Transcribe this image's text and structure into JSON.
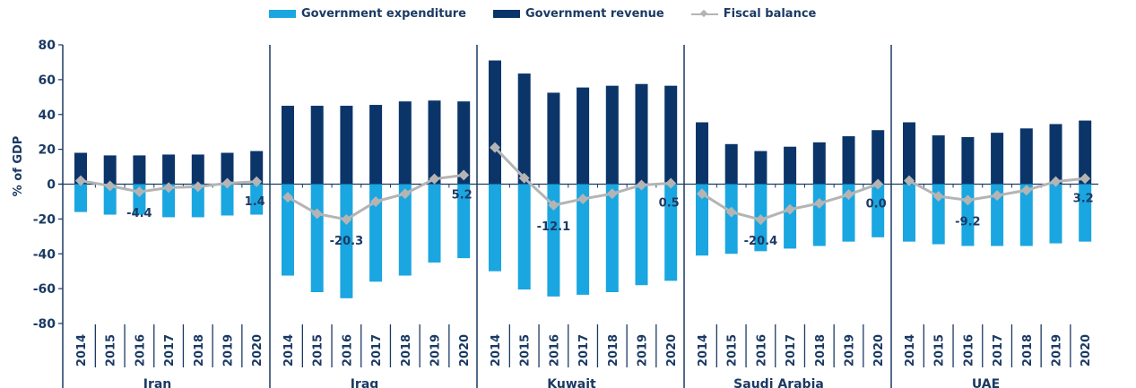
{
  "chart_data": {
    "type": "bar",
    "title": "",
    "ylabel": "% of GDP",
    "xlabel": "",
    "ylim": [
      -80,
      80
    ],
    "yticks": [
      80,
      60,
      40,
      20,
      0,
      -20,
      -40,
      -60,
      -80
    ],
    "grid": false,
    "legend_position": "top",
    "legend": [
      {
        "name": "Government expenditure",
        "kind": "bar",
        "color": "#1aa6e0"
      },
      {
        "name": "Government revenue",
        "kind": "bar",
        "color": "#0b3569"
      },
      {
        "name": "Fiscal balance",
        "kind": "line",
        "color": "#b4b4b4"
      }
    ],
    "years": [
      "2014",
      "2015",
      "2016",
      "2017",
      "2018",
      "2019",
      "2020"
    ],
    "groups": [
      {
        "country": "Iran",
        "revenue": [
          18,
          16.5,
          16.5,
          17,
          17,
          18,
          19
        ],
        "expenditure": [
          -16,
          -17.5,
          -17.5,
          -19,
          -19,
          -18,
          -17.5
        ],
        "fiscal_balance": [
          2,
          -1,
          -4.4,
          -2,
          -1.5,
          0.5,
          1.4
        ],
        "labels": [
          {
            "year_index": 2,
            "text": "-4.4"
          },
          {
            "year_index": 6,
            "text": "1.4"
          }
        ]
      },
      {
        "country": "Iraq",
        "revenue": [
          45,
          45,
          45,
          45.5,
          47.5,
          48,
          47.5
        ],
        "expenditure": [
          -52.5,
          -62,
          -65.5,
          -56,
          -52.5,
          -45,
          -42.5
        ],
        "fiscal_balance": [
          -7.5,
          -17,
          -20.3,
          -10,
          -5.5,
          3,
          5.2
        ],
        "labels": [
          {
            "year_index": 2,
            "text": "-20.3"
          },
          {
            "year_index": 6,
            "text": "5.2"
          }
        ]
      },
      {
        "country": "Kuwait",
        "revenue": [
          71,
          63.5,
          52.5,
          55.5,
          56.5,
          57.5,
          56.5
        ],
        "expenditure": [
          -50,
          -60.5,
          -64.5,
          -63.5,
          -62,
          -58,
          -55.5
        ],
        "fiscal_balance": [
          21,
          3.5,
          -12.1,
          -8.5,
          -5.5,
          -0.5,
          0.5
        ],
        "labels": [
          {
            "year_index": 2,
            "text": "-12.1"
          },
          {
            "year_index": 6,
            "text": "0.5"
          }
        ]
      },
      {
        "country": "Saudi Arabia",
        "revenue": [
          35.5,
          23,
          19,
          21.5,
          24,
          27.5,
          31
        ],
        "expenditure": [
          -41,
          -40,
          -38.5,
          -37,
          -35.5,
          -33,
          -30.5
        ],
        "fiscal_balance": [
          -5.5,
          -16,
          -20.4,
          -14.5,
          -11,
          -6,
          0.0
        ],
        "labels": [
          {
            "year_index": 2,
            "text": "-20.4"
          },
          {
            "year_index": 6,
            "text": "0.0"
          }
        ]
      },
      {
        "country": "UAE",
        "revenue": [
          35.5,
          28,
          27,
          29.5,
          32,
          34.5,
          36.5
        ],
        "expenditure": [
          -33,
          -34.5,
          -35.5,
          -35.5,
          -35.5,
          -34,
          -33
        ],
        "fiscal_balance": [
          2,
          -7,
          -9.2,
          -6.5,
          -3.5,
          1.5,
          3.2
        ],
        "labels": [
          {
            "year_index": 2,
            "text": "-9.2"
          },
          {
            "year_index": 6,
            "text": "3.2"
          }
        ]
      }
    ]
  }
}
